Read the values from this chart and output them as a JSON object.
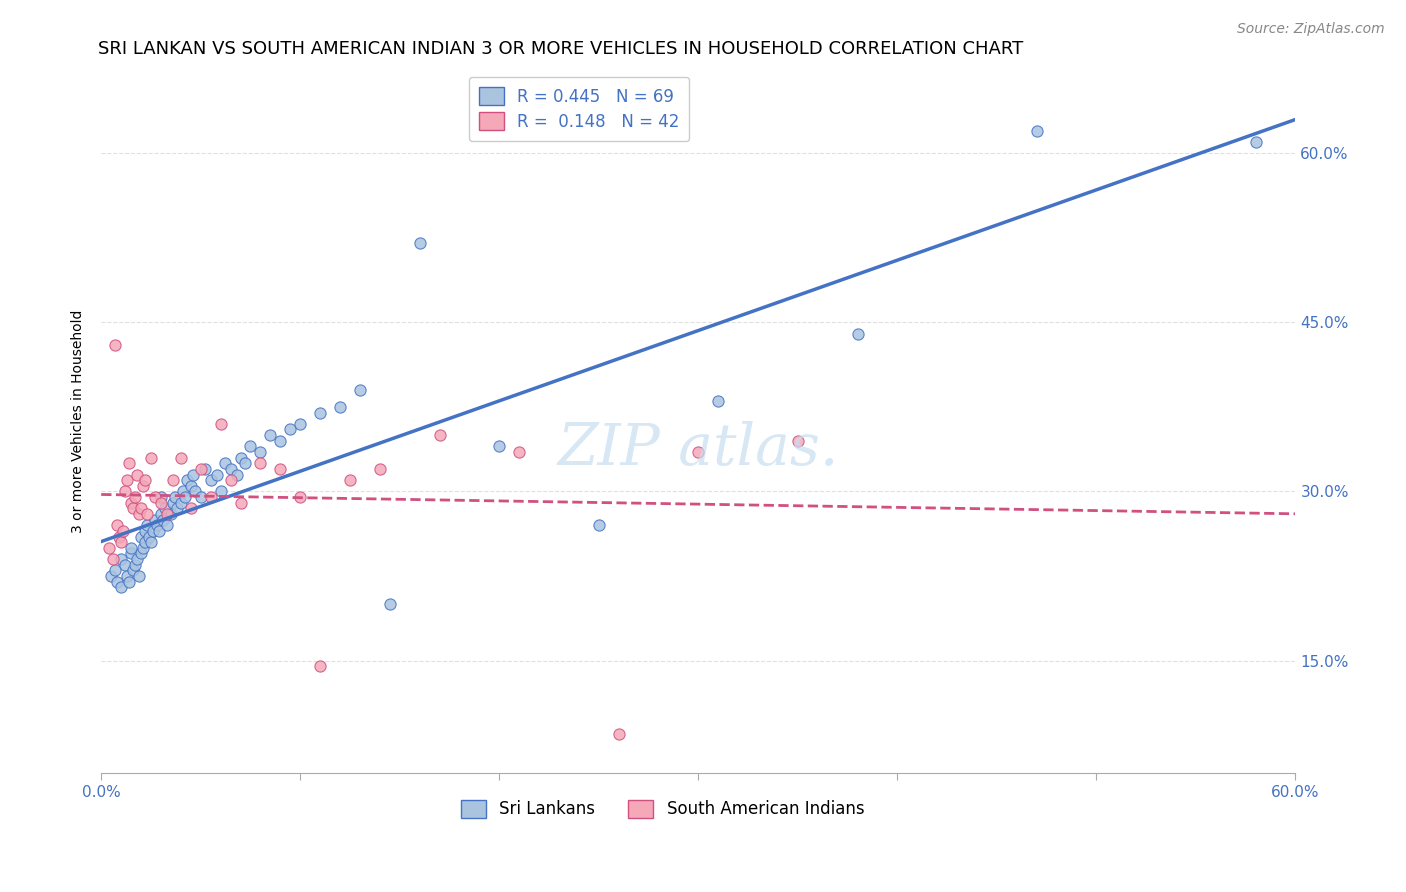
{
  "title": "SRI LANKAN VS SOUTH AMERICAN INDIAN 3 OR MORE VEHICLES IN HOUSEHOLD CORRELATION CHART",
  "source": "Source: ZipAtlas.com",
  "ylabel": "3 or more Vehicles in Household",
  "xlim": [
    0.0,
    0.6
  ],
  "ylim": [
    0.05,
    0.675
  ],
  "xticks": [
    0.0,
    0.1,
    0.2,
    0.3,
    0.4,
    0.5,
    0.6
  ],
  "xticklabels": [
    "0.0%",
    "",
    "",
    "",
    "",
    "",
    "60.0%"
  ],
  "ytick_labels_right": [
    "15.0%",
    "30.0%",
    "45.0%",
    "60.0%"
  ],
  "ytick_vals_right": [
    0.15,
    0.3,
    0.45,
    0.6
  ],
  "sri_lankan_color": "#aac4e0",
  "south_american_color": "#f4a8b8",
  "sri_lankan_line_color": "#4472c4",
  "south_american_line_color": "#d05080",
  "legend_sri_r": "0.445",
  "legend_sri_n": "69",
  "legend_sa_r": "0.148",
  "legend_sa_n": "42",
  "sri_lankan_x": [
    0.005,
    0.007,
    0.008,
    0.01,
    0.01,
    0.012,
    0.013,
    0.014,
    0.015,
    0.015,
    0.016,
    0.017,
    0.018,
    0.019,
    0.02,
    0.02,
    0.021,
    0.022,
    0.022,
    0.023,
    0.024,
    0.025,
    0.026,
    0.027,
    0.028,
    0.029,
    0.03,
    0.03,
    0.031,
    0.032,
    0.033,
    0.035,
    0.036,
    0.037,
    0.038,
    0.04,
    0.041,
    0.042,
    0.043,
    0.045,
    0.046,
    0.047,
    0.05,
    0.052,
    0.055,
    0.058,
    0.06,
    0.062,
    0.065,
    0.068,
    0.07,
    0.072,
    0.075,
    0.08,
    0.085,
    0.09,
    0.095,
    0.1,
    0.11,
    0.12,
    0.13,
    0.145,
    0.16,
    0.2,
    0.25,
    0.31,
    0.38,
    0.47,
    0.58
  ],
  "sri_lankan_y": [
    0.225,
    0.23,
    0.22,
    0.215,
    0.24,
    0.235,
    0.225,
    0.22,
    0.245,
    0.25,
    0.23,
    0.235,
    0.24,
    0.225,
    0.245,
    0.26,
    0.25,
    0.255,
    0.265,
    0.27,
    0.26,
    0.255,
    0.265,
    0.275,
    0.27,
    0.265,
    0.28,
    0.295,
    0.275,
    0.285,
    0.27,
    0.28,
    0.29,
    0.295,
    0.285,
    0.29,
    0.3,
    0.295,
    0.31,
    0.305,
    0.315,
    0.3,
    0.295,
    0.32,
    0.31,
    0.315,
    0.3,
    0.325,
    0.32,
    0.315,
    0.33,
    0.325,
    0.34,
    0.335,
    0.35,
    0.345,
    0.355,
    0.36,
    0.37,
    0.375,
    0.39,
    0.2,
    0.52,
    0.34,
    0.27,
    0.38,
    0.44,
    0.62,
    0.61
  ],
  "south_american_x": [
    0.004,
    0.006,
    0.007,
    0.008,
    0.009,
    0.01,
    0.011,
    0.012,
    0.013,
    0.014,
    0.015,
    0.016,
    0.017,
    0.018,
    0.019,
    0.02,
    0.021,
    0.022,
    0.023,
    0.025,
    0.027,
    0.03,
    0.033,
    0.036,
    0.04,
    0.045,
    0.05,
    0.055,
    0.06,
    0.065,
    0.07,
    0.08,
    0.09,
    0.1,
    0.11,
    0.125,
    0.14,
    0.17,
    0.21,
    0.26,
    0.3,
    0.35
  ],
  "south_american_y": [
    0.25,
    0.24,
    0.43,
    0.27,
    0.26,
    0.255,
    0.265,
    0.3,
    0.31,
    0.325,
    0.29,
    0.285,
    0.295,
    0.315,
    0.28,
    0.285,
    0.305,
    0.31,
    0.28,
    0.33,
    0.295,
    0.29,
    0.28,
    0.31,
    0.33,
    0.285,
    0.32,
    0.295,
    0.36,
    0.31,
    0.29,
    0.325,
    0.32,
    0.295,
    0.145,
    0.31,
    0.32,
    0.35,
    0.335,
    0.085,
    0.335,
    0.345
  ],
  "background_color": "#ffffff",
  "grid_color": "#e0e0e0",
  "title_fontsize": 13,
  "axis_label_fontsize": 10,
  "tick_fontsize": 11,
  "legend_fontsize": 12,
  "source_fontsize": 10
}
